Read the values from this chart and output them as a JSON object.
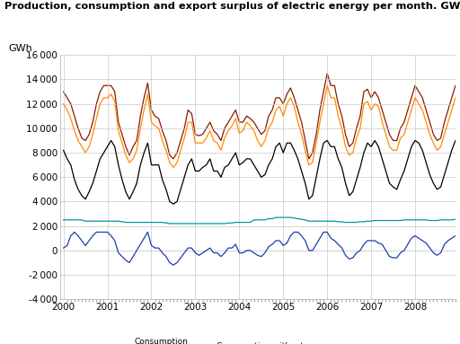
{
  "title": "Production, consumption and export surplus of electric energy per month. GWh",
  "ylabel": "GWh",
  "ylim": [
    -4000,
    16000
  ],
  "yticks": [
    -4000,
    -2000,
    0,
    2000,
    4000,
    6000,
    8000,
    10000,
    12000,
    14000,
    16000
  ],
  "colors": {
    "export_surplus": "#1a3faa",
    "consumption_power_intensive": "#009999",
    "consumption_without_power_intensive": "#000000",
    "gross_consumption": "#ff8c00",
    "total_production": "#8b1a00"
  },
  "background_color": "#ffffff",
  "total_production": [
    13000,
    12500,
    12000,
    11000,
    10000,
    9200,
    9000,
    9500,
    10500,
    12000,
    13000,
    13500,
    13500,
    13500,
    13000,
    10500,
    9500,
    8500,
    7800,
    8500,
    9000,
    11000,
    12500,
    13700,
    11500,
    11000,
    10800,
    9800,
    9000,
    7800,
    7500,
    8000,
    9000,
    10000,
    11500,
    11200,
    9500,
    9400,
    9500,
    10000,
    10500,
    9800,
    9500,
    9000,
    10000,
    10500,
    11000,
    11500,
    10500,
    10500,
    11000,
    10800,
    10500,
    10000,
    9500,
    9800,
    11000,
    11500,
    12500,
    12500,
    12000,
    12800,
    13300,
    12500,
    11500,
    10500,
    9000,
    7500,
    8000,
    9500,
    11500,
    13000,
    14500,
    13500,
    13500,
    12000,
    11000,
    9500,
    8500,
    8800,
    10000,
    11000,
    13000,
    13200,
    12500,
    13000,
    12500,
    11500,
    10500,
    9500,
    9000,
    9000,
    10000,
    10500,
    11500,
    12500,
    13500,
    13000,
    12500,
    11500,
    10500,
    9500,
    9000,
    9200,
    10500,
    11500,
    12500,
    13500
  ],
  "gross_consumption": [
    12000,
    11500,
    10800,
    9800,
    9000,
    8500,
    8000,
    8500,
    9500,
    10800,
    12000,
    12500,
    12500,
    12800,
    12200,
    9800,
    8800,
    7800,
    7200,
    7500,
    8200,
    10000,
    11500,
    12800,
    10500,
    10200,
    10000,
    9000,
    8200,
    7200,
    6800,
    7200,
    8200,
    9200,
    10500,
    10500,
    8800,
    8800,
    8800,
    9200,
    9800,
    9000,
    8800,
    8200,
    9200,
    9800,
    10200,
    10800,
    9600,
    9800,
    10500,
    10200,
    9800,
    9000,
    8500,
    9000,
    10000,
    10500,
    11500,
    11800,
    11000,
    12000,
    12500,
    11800,
    10500,
    9500,
    8200,
    7000,
    7200,
    8800,
    10500,
    12000,
    13500,
    12500,
    12500,
    11000,
    10000,
    8500,
    7800,
    8000,
    9200,
    10000,
    12000,
    12200,
    11500,
    12000,
    11800,
    10500,
    9500,
    8500,
    8200,
    8200,
    9200,
    9500,
    10500,
    11500,
    12500,
    12000,
    11500,
    10500,
    9500,
    8800,
    8200,
    8500,
    9500,
    10500,
    11500,
    12500
  ],
  "consumption_without": [
    8200,
    7500,
    7000,
    5800,
    5000,
    4500,
    4200,
    4800,
    5500,
    6500,
    7500,
    8000,
    8500,
    9000,
    8500,
    7000,
    5800,
    4800,
    4200,
    4800,
    5500,
    7000,
    8000,
    8800,
    7000,
    7000,
    7000,
    5800,
    5000,
    4000,
    3800,
    4000,
    5000,
    6000,
    7000,
    7500,
    6500,
    6500,
    6800,
    7000,
    7500,
    6500,
    6500,
    6000,
    6800,
    7000,
    7500,
    8000,
    7000,
    7200,
    7500,
    7500,
    7000,
    6500,
    6000,
    6200,
    7000,
    7500,
    8500,
    8800,
    8000,
    8800,
    8800,
    8200,
    7500,
    6500,
    5500,
    4200,
    4500,
    6000,
    7500,
    8800,
    9000,
    8500,
    8500,
    7500,
    6800,
    5500,
    4500,
    4800,
    5800,
    6800,
    8000,
    8800,
    8500,
    9000,
    8500,
    7500,
    6500,
    5500,
    5200,
    5000,
    5800,
    6500,
    7500,
    8500,
    9000,
    8800,
    8200,
    7200,
    6200,
    5500,
    5000,
    5200,
    6200,
    7200,
    8200,
    9000
  ],
  "consumption_power": [
    2500,
    2500,
    2500,
    2500,
    2500,
    2500,
    2400,
    2400,
    2400,
    2400,
    2400,
    2400,
    2400,
    2400,
    2400,
    2400,
    2350,
    2300,
    2300,
    2300,
    2300,
    2300,
    2300,
    2300,
    2300,
    2300,
    2300,
    2300,
    2250,
    2200,
    2200,
    2200,
    2200,
    2200,
    2200,
    2200,
    2200,
    2200,
    2200,
    2200,
    2200,
    2200,
    2200,
    2200,
    2200,
    2250,
    2250,
    2300,
    2300,
    2300,
    2300,
    2300,
    2500,
    2500,
    2500,
    2500,
    2600,
    2600,
    2700,
    2700,
    2700,
    2700,
    2700,
    2650,
    2600,
    2550,
    2500,
    2400,
    2400,
    2400,
    2400,
    2400,
    2400,
    2400,
    2400,
    2350,
    2350,
    2300,
    2300,
    2300,
    2300,
    2350,
    2350,
    2400,
    2400,
    2450,
    2450,
    2450,
    2450,
    2450,
    2450,
    2450,
    2450,
    2500,
    2500,
    2500,
    2500,
    2500,
    2500,
    2500,
    2450,
    2450,
    2450,
    2500,
    2500,
    2500,
    2500,
    2550
  ],
  "export_surplus": [
    200,
    400,
    1200,
    1500,
    1200,
    800,
    400,
    800,
    1200,
    1500,
    1500,
    1500,
    1500,
    1200,
    800,
    -200,
    -500,
    -800,
    -1000,
    -500,
    0,
    500,
    1000,
    1500,
    400,
    200,
    200,
    -200,
    -500,
    -1000,
    -1200,
    -1000,
    -600,
    -200,
    200,
    200,
    -200,
    -400,
    -200,
    0,
    200,
    -200,
    -200,
    -500,
    -200,
    200,
    200,
    500,
    -200,
    -200,
    0,
    0,
    -200,
    -400,
    -500,
    -200,
    300,
    500,
    800,
    800,
    400,
    600,
    1200,
    1500,
    1500,
    1200,
    800,
    0,
    0,
    500,
    1000,
    1500,
    1500,
    1000,
    800,
    500,
    200,
    -400,
    -700,
    -600,
    -200,
    0,
    500,
    800,
    800,
    800,
    600,
    500,
    0,
    -500,
    -600,
    -600,
    -200,
    0,
    500,
    1000,
    1200,
    1000,
    800,
    600,
    200,
    -200,
    -400,
    -200,
    500,
    800,
    1000,
    1200
  ]
}
